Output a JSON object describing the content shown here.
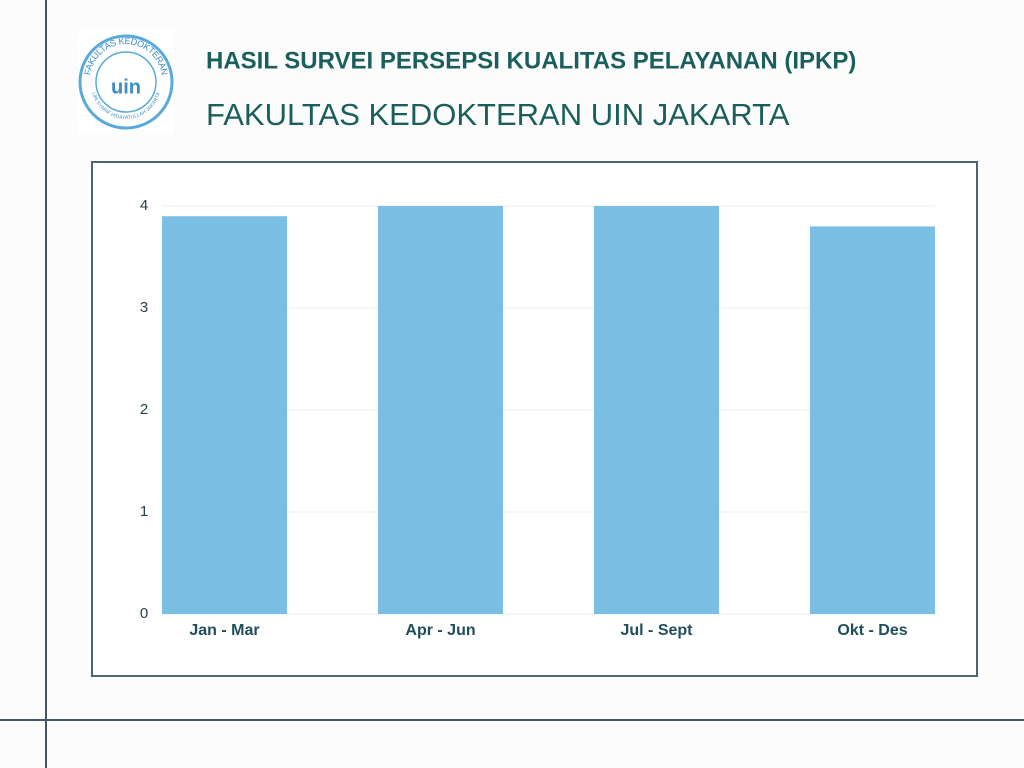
{
  "logo": {
    "top_text": "FAKULTAS KEDOKTERAN",
    "bottom_text": "UIN SYARIF HIDAYATULLAH JAKARTA",
    "mark": "uin"
  },
  "chart_data": {
    "type": "bar",
    "title": "HASIL SURVEI PERSEPSI KUALITAS PELAYANAN (IPKP)",
    "subtitle": "FAKULTAS KEDOKTERAN UIN JAKARTA",
    "categories": [
      "Jan - Mar",
      "Apr - Jun",
      "Jul - Sept",
      "Okt - Des"
    ],
    "values": [
      3.9,
      4.0,
      4.0,
      3.8
    ],
    "color": "#7abfe3",
    "ylim": [
      0,
      4
    ],
    "yticks": [
      0,
      1,
      2,
      3,
      4
    ],
    "grid": true
  }
}
